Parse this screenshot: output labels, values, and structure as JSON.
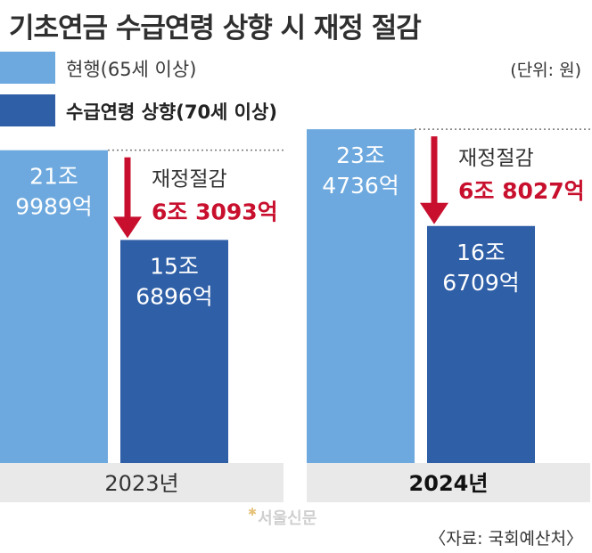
{
  "title": "기초연금 수급연령 상향 시 재정 절감",
  "legend": [
    {
      "label": "현행(65세 이상)",
      "color": "#6da9de",
      "bold": false
    },
    {
      "label": "수급연령 상향(70세 이상)",
      "color": "#2f5fa7",
      "bold": true
    }
  ],
  "unit": "(단위: 원)",
  "source": "〈자료: 국회예산처〉",
  "watermark": "서울신문",
  "chart_data": {
    "type": "bar",
    "title": "기초연금 수급연령 상향 시 재정 절감",
    "unit": "원",
    "categories": [
      "2023년",
      "2024년"
    ],
    "series": [
      {
        "name": "현행(65세 이상)",
        "values_jo": [
          21.9989,
          23.4736
        ],
        "labels": [
          [
            "21조",
            "9989억"
          ],
          [
            "23조",
            "4736억"
          ]
        ],
        "color": "#6da9de"
      },
      {
        "name": "수급연령 상향(70세 이상)",
        "values_jo": [
          15.6896,
          16.6709
        ],
        "labels": [
          [
            "15조",
            "6896억"
          ],
          [
            "16조",
            "6709억"
          ]
        ],
        "color": "#2f5fa7"
      }
    ],
    "savings": [
      {
        "label": "재정절감",
        "values": [
          "6조",
          "3093억"
        ],
        "values_jo": 6.3093
      },
      {
        "label": "재정절감",
        "values": [
          "6조",
          "8027억"
        ],
        "values_jo": 6.8027
      }
    ],
    "category_label_bold": [
      false,
      true
    ],
    "arrow_color": "#c8102e"
  }
}
